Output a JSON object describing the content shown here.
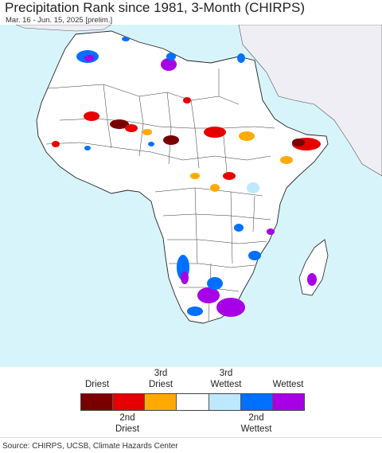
{
  "header": {
    "title": "Precipitation Rank since 1981, 3-Month (CHIRPS)",
    "subtitle": "Mar. 16 - Jun. 15, 2025 [prelim.]"
  },
  "map": {
    "ocean_color": "#d8f4fb",
    "land_color": "#ffffff",
    "outside_region_color": "#efeef4",
    "border_color": "#222222"
  },
  "legend": {
    "items": [
      {
        "label": "Driest",
        "color": "#7a0000"
      },
      {
        "label": "2nd Driest",
        "color": "#e60000"
      },
      {
        "label": "3rd Driest",
        "color": "#ffaa00"
      },
      {
        "label": "",
        "color": "#ffffff"
      },
      {
        "label": "3rd Wettest",
        "color": "#bee8ff"
      },
      {
        "label": "2nd Wettest",
        "color": "#0070ff"
      },
      {
        "label": "Wettest",
        "color": "#a800e6"
      }
    ],
    "top_labels": {
      "driest": "Driest",
      "third_driest_line1": "3rd",
      "third_driest_line2": "Driest",
      "third_wettest_line1": "3rd",
      "third_wettest_line2": "Wettest",
      "wettest": "Wettest"
    },
    "bottom_labels": {
      "second_driest_line1": "2nd",
      "second_driest_line2": "Driest",
      "second_wettest_line1": "2nd",
      "second_wettest_line2": "Wettest"
    }
  },
  "footer": {
    "source": "Source: CHIRPS, UCSB, Climate Hazards Center"
  }
}
